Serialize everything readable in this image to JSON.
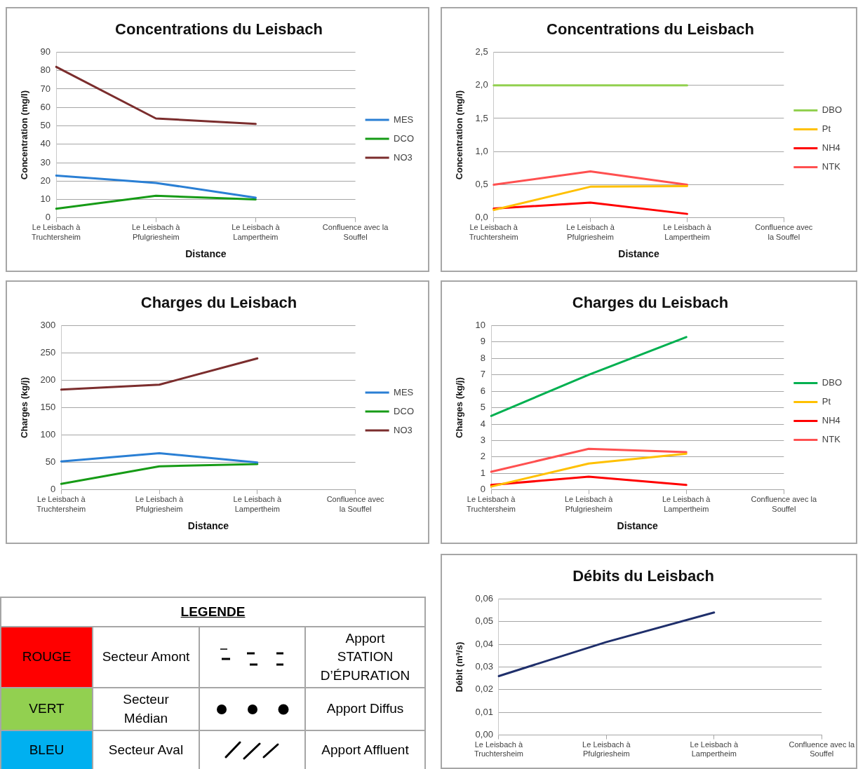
{
  "chart_data": [
    {
      "type": "line",
      "title": "Concentrations du Leisbach",
      "xlabel": "Distance",
      "ylabel": "Concentration (mg/l)",
      "categories": [
        "Le Leisbach à Truchtersheim",
        "Le Leisbach à Pfulgriesheim",
        "Le Leisbach à Lampertheim",
        "Confluence avec la Souffel"
      ],
      "series": [
        {
          "name": "MES",
          "color": "#2a7fd4",
          "values": [
            23,
            19,
            11,
            null
          ]
        },
        {
          "name": "DCO",
          "color": "#169b16",
          "values": [
            5,
            12,
            10,
            null
          ]
        },
        {
          "name": "NO3",
          "color": "#7b2d2d",
          "values": [
            82,
            54,
            51,
            null
          ]
        }
      ],
      "ylim": [
        0,
        90
      ],
      "yticks": [
        0,
        10,
        20,
        30,
        40,
        50,
        60,
        70,
        80,
        90
      ],
      "grid": "y",
      "legend": "right",
      "marker": "none"
    },
    {
      "type": "line",
      "title": "Concentrations du Leisbach",
      "xlabel": "Distance",
      "ylabel": "Concentration (mg/l)",
      "categories": [
        "Le Leisbach à Truchtersheim",
        "Le Leisbach à Pfulgriesheim",
        "Le Leisbach à Lampertheim",
        "Confluence avec la Souffel"
      ],
      "series": [
        {
          "name": "DBO",
          "color": "#92d050",
          "values": [
            2,
            2,
            2,
            null
          ]
        },
        {
          "name": "Pt",
          "color": "#ffc000",
          "values": [
            0.12,
            0.47,
            0.48,
            null
          ]
        },
        {
          "name": "NH4",
          "color": "#ff0000",
          "values": [
            0.14,
            0.23,
            0.06,
            null
          ]
        },
        {
          "name": "NTK",
          "color": "#ff5050",
          "values": [
            0.5,
            0.7,
            0.5,
            null
          ]
        }
      ],
      "ylim": [
        0,
        2.5
      ],
      "yticks": [
        {
          "value": 0,
          "label": "0,0"
        },
        {
          "value": 0.5,
          "label": "0,5"
        },
        {
          "value": 1,
          "label": "1,0"
        },
        {
          "value": 1.5,
          "label": "1,5"
        },
        {
          "value": 2,
          "label": "2,0"
        },
        {
          "value": 2.5,
          "label": "2,5"
        }
      ],
      "grid": "y",
      "legend": "right",
      "marker": "none"
    },
    {
      "type": "line",
      "title": "Charges du Leisbach",
      "xlabel": "Distance",
      "ylabel": "Charges (kg/j)",
      "categories": [
        "Le Leisbach à Truchtersheim",
        "Le Leisbach à Pfulgriesheim",
        "Le Leisbach à Lampertheim",
        "Confluence avec la Souffel"
      ],
      "series": [
        {
          "name": "MES",
          "color": "#2a7fd4",
          "values": [
            52,
            67,
            50,
            null
          ]
        },
        {
          "name": "DCO",
          "color": "#169b16",
          "values": [
            11,
            43,
            47,
            null
          ]
        },
        {
          "name": "NO3",
          "color": "#7b2d2d",
          "values": [
            183,
            192,
            240,
            null
          ]
        }
      ],
      "ylim": [
        0,
        300
      ],
      "yticks": [
        0,
        50,
        100,
        150,
        200,
        250,
        300
      ],
      "grid": "y",
      "legend": "right",
      "marker": "none"
    },
    {
      "type": "line",
      "title": "Charges du Leisbach",
      "xlabel": "Distance",
      "ylabel": "Charges (kg/j)",
      "categories": [
        "Le Leisbach à Truchtersheim",
        "Le Leisbach à Pfulgriesheim",
        "Le Leisbach à Lampertheim",
        "Confluence avec la Souffel"
      ],
      "series": [
        {
          "name": "DBO",
          "color": "#00b050",
          "values": [
            4.5,
            7,
            9.3,
            null
          ]
        },
        {
          "name": "Pt",
          "color": "#ffc000",
          "values": [
            0.2,
            1.6,
            2.2,
            null
          ]
        },
        {
          "name": "NH4",
          "color": "#ff0000",
          "values": [
            0.3,
            0.8,
            0.3,
            null
          ]
        },
        {
          "name": "NTK",
          "color": "#ff5050",
          "values": [
            1.1,
            2.5,
            2.3,
            null
          ]
        }
      ],
      "ylim": [
        0,
        10
      ],
      "yticks": [
        0,
        1,
        2,
        3,
        4,
        5,
        6,
        7,
        8,
        9,
        10
      ],
      "grid": "y",
      "legend": "right",
      "marker": "none"
    },
    {
      "type": "line",
      "title": "Débits du Leisbach",
      "ylabel": "Débit (m³/s)",
      "categories": [
        "Le Leisbach à Truchtersheim",
        "Le Leisbach à Pfulgriesheim",
        "Le Leisbach à Lampertheim",
        "Confluence avec la Souffel"
      ],
      "series": [
        {
          "color": "#1f2f6b",
          "values": [
            0.026,
            0.041,
            0.054,
            null
          ]
        }
      ],
      "ylim": [
        0,
        0.06
      ],
      "yticks": [
        {
          "value": 0,
          "label": "0,00"
        },
        {
          "value": 0.01,
          "label": "0,01"
        },
        {
          "value": 0.02,
          "label": "0,02"
        },
        {
          "value": 0.03,
          "label": "0,03"
        },
        {
          "value": 0.04,
          "label": "0,04"
        },
        {
          "value": 0.05,
          "label": "0,05"
        },
        {
          "value": 0.06,
          "label": "0,06"
        }
      ],
      "grid": "y",
      "marker": "none"
    },
    {
      "type": "other",
      "title": "LEGENDE",
      "annotations": [
        "ROUGE",
        "Secteur Amont",
        "Apport STATION D’ÉPURATION",
        "VERT",
        "Secteur Médian",
        "Apport Diffus",
        "BLEU",
        "Secteur Aval",
        "Apport Affluent"
      ]
    }
  ]
}
